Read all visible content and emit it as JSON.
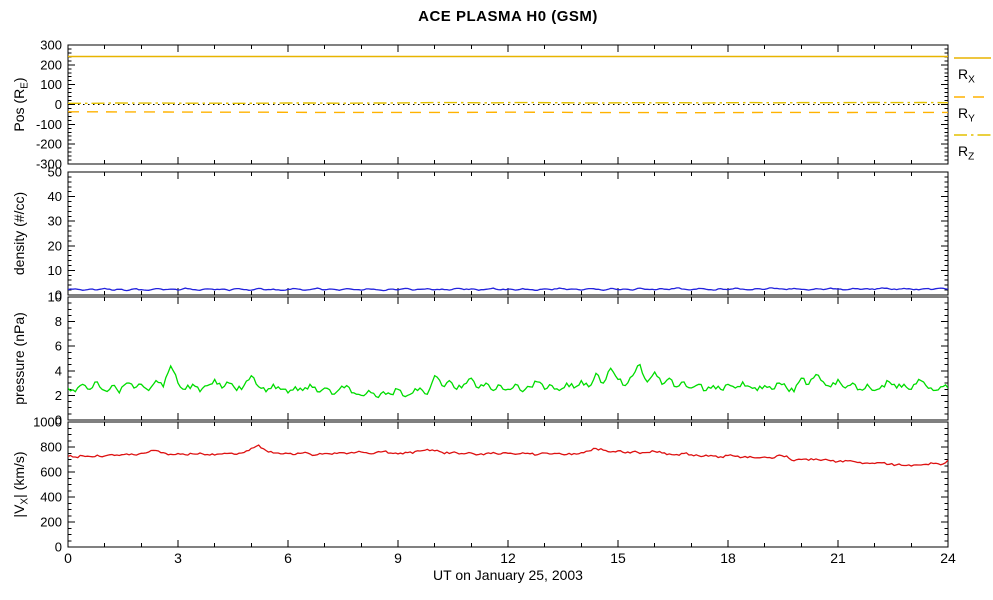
{
  "title": "ACE PLASMA H0 (GSM)",
  "xaxis": {
    "label": "UT on January 25, 2003",
    "ticks": [
      0,
      3,
      6,
      9,
      12,
      15,
      18,
      21,
      24
    ],
    "min": 0,
    "max": 24,
    "minor_step": 1
  },
  "colors": {
    "background": "#FFFFFF",
    "frame": "#000000",
    "orbit_solid": "#E8B400",
    "orbit_dash": "#FFB200",
    "orbit_dashdot": "#E4C100",
    "zero_line": "#000000",
    "density": "#2222DD",
    "pressure": "#00DC00",
    "velocity": "#DD1111"
  },
  "legend": {
    "position": "right-of-first-panel",
    "items": [
      {
        "label": "R",
        "sub": "X",
        "style": "solid",
        "color_key": "orbit_solid"
      },
      {
        "label": "R",
        "sub": "Y",
        "style": "dash",
        "color_key": "orbit_dash"
      },
      {
        "label": "R",
        "sub": "Z",
        "style": "dashdot",
        "color_key": "orbit_dashdot"
      }
    ]
  },
  "chart_data": [
    {
      "type": "line",
      "name": "position",
      "ylabel_parts": [
        [
          "Pos (R",
          false
        ],
        [
          "E",
          true
        ],
        [
          ")",
          false
        ]
      ],
      "ylim": [
        -300,
        300
      ],
      "ytick_step": 100,
      "yminor_step": 20,
      "grid": false,
      "series": [
        {
          "name": "zero-reference",
          "color_key": "zero_line",
          "dash": "1.5 3.5",
          "width": 1.1,
          "x": [
            0,
            24
          ],
          "values": [
            0,
            0
          ]
        },
        {
          "name": "R_Z",
          "color_key": "orbit_dashdot",
          "dash": "13 4 2.5 4",
          "width": 1.4,
          "noise": 0.9,
          "x": [
            0,
            2,
            4,
            6,
            8,
            9,
            10,
            11,
            12,
            14,
            16,
            18,
            20,
            22,
            24
          ],
          "values": [
            6,
            7,
            6.5,
            7.5,
            7,
            8,
            10,
            9,
            9.5,
            8,
            8.5,
            9,
            9.5,
            10,
            9
          ]
        },
        {
          "name": "R_Y",
          "color_key": "orbit_dash",
          "dash": "11 8",
          "width": 1.4,
          "noise": 0.9,
          "x": [
            0,
            4,
            8,
            12,
            16,
            20,
            24
          ],
          "values": [
            -37,
            -39,
            -40,
            -39,
            -41,
            -40,
            -40
          ]
        },
        {
          "name": "R_X",
          "color_key": "orbit_solid",
          "dash": "none",
          "width": 1.4,
          "x": [
            0,
            24
          ],
          "values": [
            242,
            242
          ]
        }
      ]
    },
    {
      "type": "line",
      "name": "density",
      "ylabel_parts": [
        [
          "density (#/cc)",
          false
        ]
      ],
      "ylim": [
        0,
        50
      ],
      "ytick_step": 10,
      "yminor_step": 2,
      "grid": false,
      "series": [
        {
          "name": "density",
          "color_key": "density",
          "dash": "none",
          "width": 1.3,
          "noise": 0.18,
          "x_start": 0,
          "x_step": 0.2,
          "values": [
            2.2,
            2.5,
            1.9,
            2.4,
            2.1,
            2.7,
            2.0,
            2.3,
            1.8,
            2.5,
            2.2,
            1.9,
            2.6,
            2.1,
            2.4,
            2.0,
            2.8,
            2.2,
            1.9,
            2.5,
            2.1,
            2.4,
            1.8,
            2.6,
            2.2,
            2.0,
            2.7,
            2.1,
            2.4,
            1.9,
            2.3,
            2.6,
            2.0,
            2.2,
            2.8,
            2.1,
            2.4,
            1.9,
            2.6,
            2.2,
            2.0,
            2.5,
            2.2,
            1.8,
            2.4,
            2.1,
            2.7,
            2.0,
            2.3,
            2.6,
            2.1,
            2.4,
            2.0,
            2.7,
            2.2,
            2.5,
            1.9,
            2.3,
            2.8,
            2.1,
            2.4,
            2.0,
            2.6,
            2.2,
            1.9,
            2.5,
            2.1,
            2.8,
            2.2,
            2.4,
            2.0,
            2.6,
            2.3,
            1.9,
            2.7,
            2.2,
            2.4,
            2.0,
            2.8,
            2.3,
            2.1,
            2.6,
            2.2,
            2.9,
            2.4,
            2.1,
            2.7,
            2.3,
            2.0,
            2.6,
            2.2,
            2.8,
            2.4,
            2.1,
            2.6,
            2.3,
            2.9,
            2.5,
            2.2,
            2.7,
            2.3,
            2.0,
            2.6,
            2.2,
            2.8,
            2.4,
            2.1,
            2.7,
            2.3,
            2.6,
            2.2,
            2.9,
            2.5,
            2.2,
            2.7,
            2.4,
            2.1,
            2.6,
            2.3,
            2.8,
            2.4
          ]
        }
      ]
    },
    {
      "type": "line",
      "name": "pressure",
      "ylabel_parts": [
        [
          "pressure (nPa)",
          false
        ]
      ],
      "ylim": [
        0,
        10
      ],
      "ytick_step": 2,
      "yminor_step": 0.5,
      "grid": false,
      "series": [
        {
          "name": "pressure",
          "color_key": "pressure",
          "dash": "none",
          "width": 1.3,
          "noise": 0.22,
          "x_start": 0,
          "x_step": 0.2,
          "values": [
            2.6,
            2.3,
            2.9,
            2.5,
            3.1,
            2.4,
            2.8,
            2.2,
            3.0,
            2.6,
            2.9,
            2.4,
            3.2,
            2.7,
            4.4,
            3.0,
            2.5,
            2.9,
            2.3,
            2.8,
            3.3,
            2.6,
            3.0,
            2.4,
            2.8,
            3.6,
            2.7,
            2.3,
            2.9,
            2.5,
            2.2,
            2.7,
            2.4,
            2.9,
            2.3,
            2.6,
            2.1,
            2.5,
            2.8,
            2.2,
            2.0,
            2.4,
            1.9,
            2.3,
            2.1,
            2.5,
            1.9,
            2.2,
            2.6,
            2.1,
            3.6,
            2.8,
            3.2,
            2.5,
            2.9,
            3.4,
            2.6,
            3.0,
            2.4,
            2.8,
            2.5,
            2.9,
            2.3,
            2.7,
            3.1,
            2.5,
            2.8,
            2.4,
            3.0,
            2.6,
            3.2,
            2.7,
            3.8,
            3.0,
            4.2,
            3.3,
            2.8,
            3.6,
            4.5,
            3.1,
            3.9,
            2.9,
            3.4,
            2.7,
            3.1,
            2.6,
            2.9,
            2.4,
            2.8,
            2.5,
            2.9,
            2.6,
            3.1,
            2.7,
            2.4,
            2.8,
            2.5,
            3.0,
            2.6,
            2.3,
            3.4,
            2.9,
            3.7,
            3.1,
            2.7,
            3.3,
            2.6,
            3.0,
            2.5,
            2.9,
            2.4,
            2.8,
            3.1,
            2.6,
            2.9,
            2.5,
            3.3,
            2.8,
            2.4,
            2.7,
            2.6
          ]
        }
      ]
    },
    {
      "type": "line",
      "name": "vx-magnitude",
      "ylabel_parts": [
        [
          "|V",
          false
        ],
        [
          "X",
          true
        ],
        [
          "| (km/s)",
          false
        ]
      ],
      "ylim": [
        0,
        1000
      ],
      "ytick_step": 200,
      "yminor_step": 50,
      "grid": false,
      "series": [
        {
          "name": "vx",
          "color_key": "velocity",
          "dash": "none",
          "width": 1.3,
          "noise": 9,
          "x_start": 0,
          "x_step": 0.2,
          "values": [
            725,
            720,
            730,
            724,
            735,
            728,
            740,
            732,
            745,
            738,
            750,
            760,
            772,
            755,
            742,
            748,
            738,
            745,
            752,
            740,
            735,
            744,
            750,
            742,
            756,
            790,
            815,
            772,
            752,
            745,
            748,
            740,
            752,
            744,
            738,
            748,
            742,
            755,
            746,
            752,
            760,
            748,
            756,
            764,
            752,
            745,
            758,
            750,
            768,
            782,
            770,
            758,
            748,
            754,
            745,
            752,
            740,
            748,
            756,
            744,
            750,
            742,
            754,
            746,
            738,
            752,
            744,
            750,
            740,
            748,
            755,
            768,
            788,
            775,
            760,
            770,
            752,
            762,
            748,
            756,
            764,
            752,
            745,
            740,
            748,
            738,
            730,
            735,
            728,
            722,
            732,
            726,
            718,
            724,
            714,
            720,
            710,
            735,
            728,
            690,
            700,
            694,
            705,
            698,
            690,
            684,
            692,
            686,
            678,
            672,
            668,
            674,
            662,
            658,
            652,
            648,
            656,
            662,
            668,
            658,
            695
          ]
        }
      ]
    }
  ]
}
